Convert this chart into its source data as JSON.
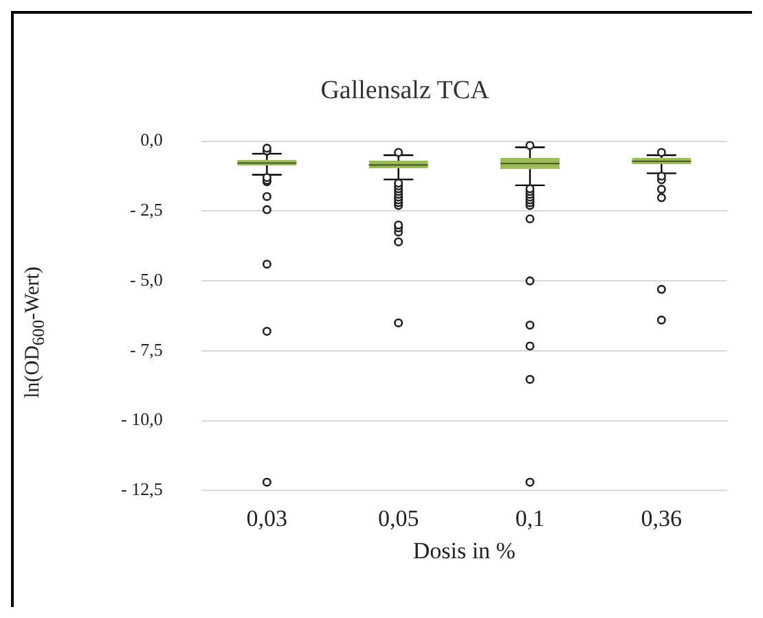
{
  "chart_data": {
    "type": "box",
    "title": "Gallensalz TCA",
    "xlabel": "Dosis in %",
    "ylabel": "ln(OD$_{600}$-Wert)",
    "categories": [
      "0,03",
      "0,05",
      "0,1",
      "0,36"
    ],
    "color": "#9bbb59",
    "boxes": [
      {
        "low": -1.2,
        "q1": -0.87,
        "median": -0.78,
        "q3": -0.67,
        "high": -0.45,
        "outliers": [
          -0.25,
          -0.35,
          -1.3,
          -1.4,
          -1.45,
          -1.98,
          -2.45,
          -4.4,
          -6.8,
          -12.2
        ]
      },
      {
        "low": -1.37,
        "q1": -0.97,
        "median": -0.85,
        "q3": -0.7,
        "high": -0.5,
        "outliers": [
          -0.4,
          -1.5,
          -1.6,
          -1.7,
          -1.8,
          -1.9,
          -2.0,
          -2.1,
          -2.2,
          -2.3,
          -3.0,
          -3.1,
          -3.25,
          -3.6,
          -6.5
        ]
      },
      {
        "low": -1.58,
        "q1": -1.0,
        "median": -0.8,
        "q3": -0.6,
        "high": -0.22,
        "outliers": [
          -0.15,
          -1.7,
          -1.8,
          -1.9,
          -2.0,
          -2.1,
          -2.2,
          -2.3,
          -2.78,
          -5.0,
          -6.58,
          -7.33,
          -8.52,
          -12.2
        ]
      },
      {
        "low": -1.15,
        "q1": -0.82,
        "median": -0.72,
        "q3": -0.6,
        "high": -0.5,
        "outliers": [
          -0.4,
          -1.25,
          -1.38,
          -1.72,
          -2.02,
          -5.3,
          -6.4
        ]
      }
    ],
    "ylim": [
      -12.5,
      0
    ],
    "yticks": [
      {
        "value": 0,
        "label": "0,0"
      },
      {
        "value": -2.5,
        "label": "- 2,5"
      },
      {
        "value": -5,
        "label": "- 5,0"
      },
      {
        "value": -7.5,
        "label": "- 7,5"
      },
      {
        "value": -10,
        "label": "- 10,0"
      },
      {
        "value": -12.5,
        "label": "- 12,5"
      }
    ],
    "grid": "y",
    "legend": false,
    "marker": "circle"
  }
}
